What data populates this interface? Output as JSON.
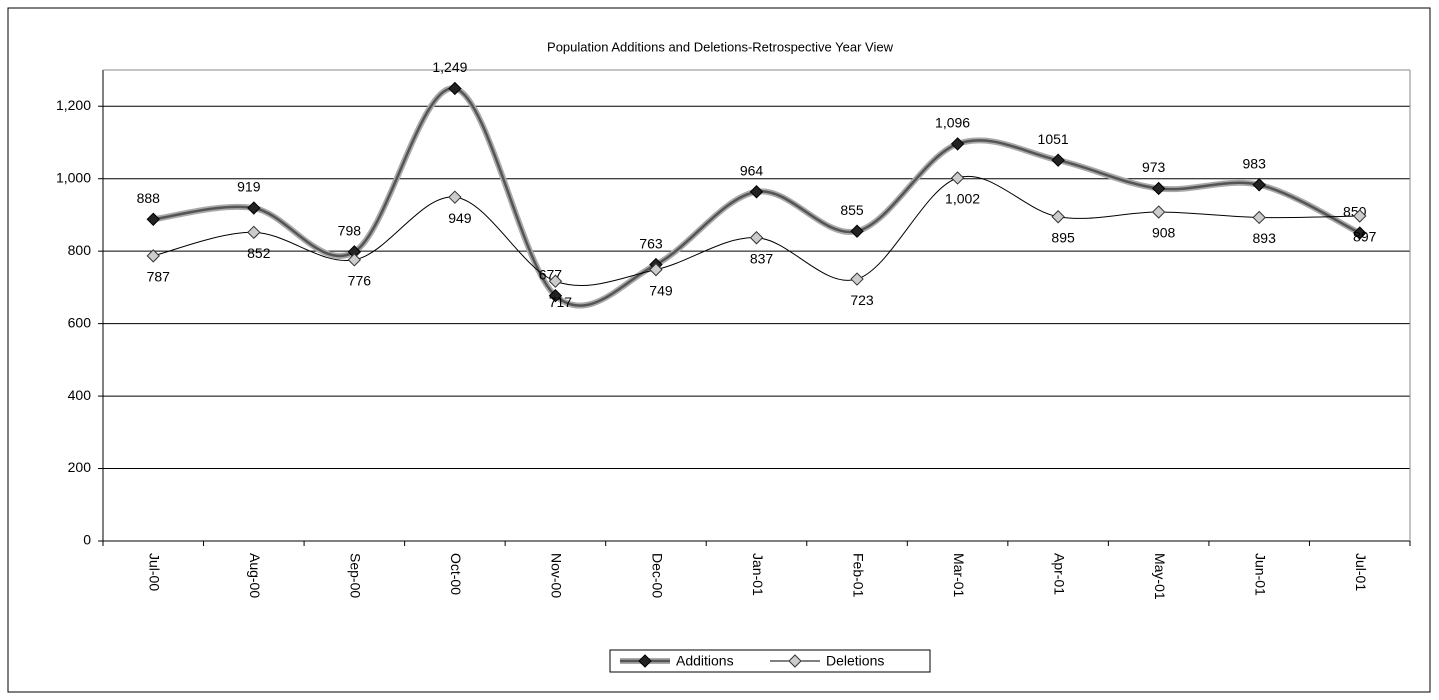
{
  "chart_data": {
    "type": "line",
    "title": "Population Additions and Deletions-Retrospective Year View",
    "categories": [
      "Jul-00",
      "Aug-00",
      "Sep-00",
      "Oct-00",
      "Nov-00",
      "Dec-00",
      "Jan-01",
      "Feb-01",
      "Mar-01",
      "Apr-01",
      "May-01",
      "Jun-01",
      "Jul-01"
    ],
    "series": [
      {
        "name": "Additions",
        "color": "#555555",
        "values": [
          888,
          919,
          798,
          1249,
          677,
          763,
          964,
          855,
          1096,
          1051,
          973,
          983,
          850
        ],
        "value_labels": [
          "888",
          "919",
          "798",
          "1,249",
          "677",
          "763",
          "964",
          "855",
          "1,096",
          "1051",
          "973",
          "983",
          "850"
        ]
      },
      {
        "name": "Deletions",
        "color": "#000000",
        "values": [
          787,
          852,
          776,
          949,
          717,
          749,
          837,
          723,
          1002,
          895,
          908,
          893,
          897
        ],
        "value_labels": [
          "787",
          "852",
          "776",
          "949",
          "717",
          "749",
          "837",
          "723",
          "1,002",
          "895",
          "908",
          "893",
          "897"
        ]
      }
    ],
    "ylim": [
      0,
      1300
    ],
    "yticks": [
      0,
      200,
      400,
      600,
      800,
      {
        "value": 1000,
        "label": "1,000"
      },
      {
        "value": 1200,
        "label": "1,200"
      }
    ],
    "grid": true,
    "legend": "bottom"
  }
}
